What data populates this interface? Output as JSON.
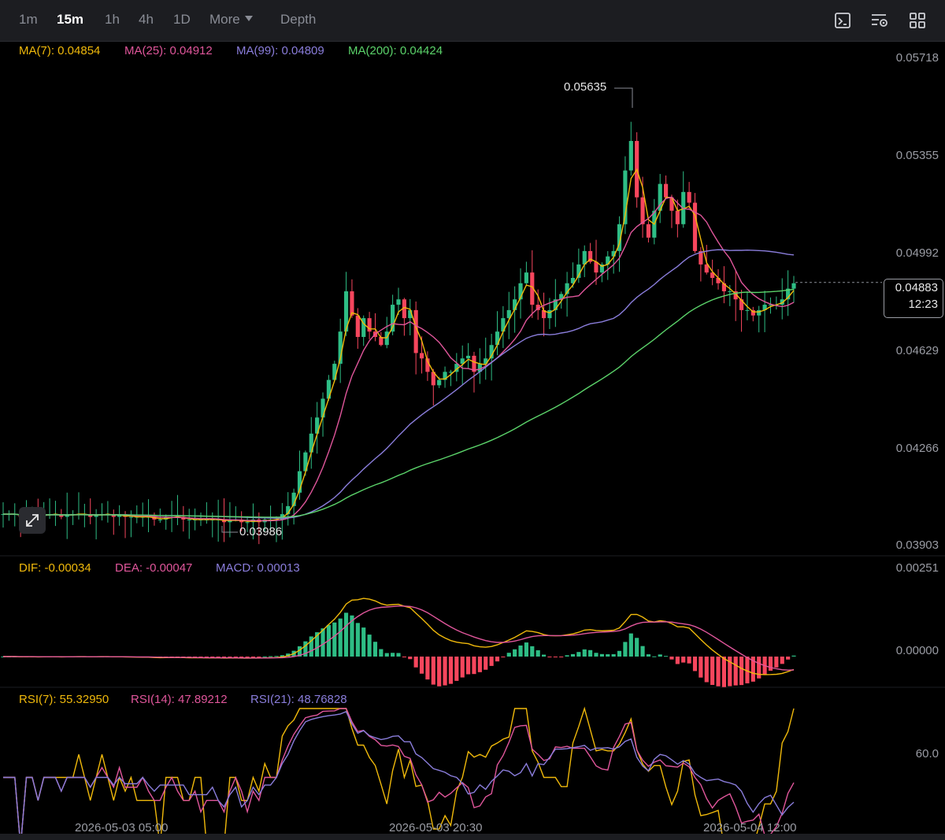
{
  "toolbar": {
    "timeframes": [
      {
        "label": "1m",
        "active": false
      },
      {
        "label": "15m",
        "active": true
      },
      {
        "label": "1h",
        "active": false
      },
      {
        "label": "4h",
        "active": false
      },
      {
        "label": "1D",
        "active": false
      }
    ],
    "more_label": "More",
    "depth_label": "Depth",
    "icons": [
      "chart-type-icon",
      "indicator-settings-icon",
      "layout-grid-icon"
    ]
  },
  "legend": {
    "ma": [
      {
        "text": "MA(7): 0.04854",
        "color": "#f0b90b"
      },
      {
        "text": "MA(25): 0.04912",
        "color": "#e0569b"
      },
      {
        "text": "MA(99): 0.04809",
        "color": "#8a7ddb"
      },
      {
        "text": "MA(200): 0.04424",
        "color": "#5bd36a"
      }
    ],
    "macd": [
      {
        "text": "DIF: -0.00034",
        "color": "#f0b90b"
      },
      {
        "text": "DEA: -0.00047",
        "color": "#e0569b"
      },
      {
        "text": "MACD: 0.00013",
        "color": "#8a7ddb"
      }
    ],
    "rsi": [
      {
        "text": "RSI(7): 55.32950",
        "color": "#f0b90b"
      },
      {
        "text": "RSI(14): 47.89212",
        "color": "#e0569b"
      },
      {
        "text": "RSI(21): 48.76828",
        "color": "#8a7ddb"
      }
    ]
  },
  "price_axis": [
    "0.05718",
    "0.05355",
    "0.04992",
    "0.04629",
    "0.04266",
    "0.03903"
  ],
  "macd_axis": [
    "0.00251",
    "0.00000"
  ],
  "rsi_axis": [
    "60.0"
  ],
  "current_price": {
    "price": "0.04883",
    "countdown": "12:23"
  },
  "annotations": {
    "high": "0.05635",
    "low": "0.03986"
  },
  "dates": [
    "2026-05-03 05:00",
    "2026-05-03 20:30",
    "2026-05-04 12:00"
  ],
  "colors": {
    "up": "#2ebd85",
    "down": "#f6465d",
    "ma7": "#f0b90b",
    "ma25": "#e0569b",
    "ma99": "#8a7ddb",
    "ma200": "#5bd36a"
  },
  "chart_data": {
    "type": "candlestick",
    "price_range": [
      0.03903,
      0.05718
    ],
    "candles_approx_close": [
      0.0402,
      0.0402,
      0.0402,
      0.0401,
      0.0402,
      0.0402,
      0.0401,
      0.0402,
      0.0402,
      0.0402,
      0.0401,
      0.0402,
      0.0402,
      0.0402,
      0.0402,
      0.0401,
      0.0402,
      0.0402,
      0.0402,
      0.0401,
      0.0402,
      0.0401,
      0.0401,
      0.0401,
      0.0401,
      0.0401,
      0.04,
      0.04,
      0.0401,
      0.0401,
      0.0401,
      0.04,
      0.04,
      0.04,
      0.04,
      0.04,
      0.04,
      0.04,
      0.0399,
      0.04,
      0.04,
      0.0399,
      0.0399,
      0.04,
      0.0399,
      0.04,
      0.04,
      0.04,
      0.0402,
      0.0405,
      0.041,
      0.0418,
      0.0425,
      0.0432,
      0.0438,
      0.0445,
      0.0452,
      0.0458,
      0.047,
      0.0485,
      0.0476,
      0.0468,
      0.0475,
      0.047,
      0.0468,
      0.0465,
      0.047,
      0.048,
      0.0482,
      0.0475,
      0.0478,
      0.0462,
      0.046,
      0.0455,
      0.045,
      0.0452,
      0.0455,
      0.0455,
      0.0458,
      0.046,
      0.0461,
      0.0455,
      0.0458,
      0.046,
      0.0465,
      0.047,
      0.0475,
      0.0478,
      0.0482,
      0.0488,
      0.0492,
      0.048,
      0.0478,
      0.0475,
      0.0478,
      0.0482,
      0.0484,
      0.0488,
      0.049,
      0.0495,
      0.05,
      0.0496,
      0.0492,
      0.0495,
      0.0498,
      0.05,
      0.051,
      0.053,
      0.0541,
      0.052,
      0.051,
      0.0505,
      0.0515,
      0.0525,
      0.052,
      0.0515,
      0.051,
      0.0522,
      0.0518,
      0.05,
      0.0495,
      0.0492,
      0.049,
      0.0488,
      0.0485,
      0.0485,
      0.0482,
      0.0478,
      0.0478,
      0.0476,
      0.0478,
      0.048,
      0.048,
      0.048,
      0.0482,
      0.0486,
      0.0488
    ]
  }
}
